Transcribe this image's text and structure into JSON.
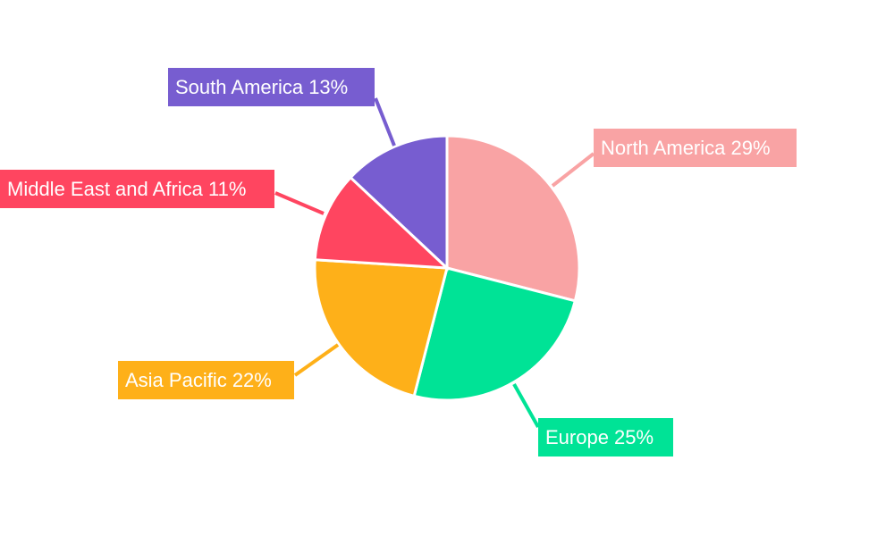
{
  "chart_data": {
    "type": "pie",
    "title": "",
    "start_angle_deg": 0,
    "direction": "clockwise",
    "slices": [
      {
        "label": "North America",
        "value": 29,
        "display": "North America 29%",
        "color": "#f9a3a4"
      },
      {
        "label": "Europe",
        "value": 25,
        "display": "Europe 25%",
        "color": "#00e396"
      },
      {
        "label": "Asia Pacific",
        "value": 22,
        "display": "Asia Pacific 22%",
        "color": "#feb019"
      },
      {
        "label": "Middle East and Africa",
        "value": 11,
        "display": "Middle East and Africa 11%",
        "color": "#ff4560"
      },
      {
        "label": "South America",
        "value": 13,
        "display": "South America 13%",
        "color": "#775dd0"
      }
    ],
    "legend": "none"
  }
}
